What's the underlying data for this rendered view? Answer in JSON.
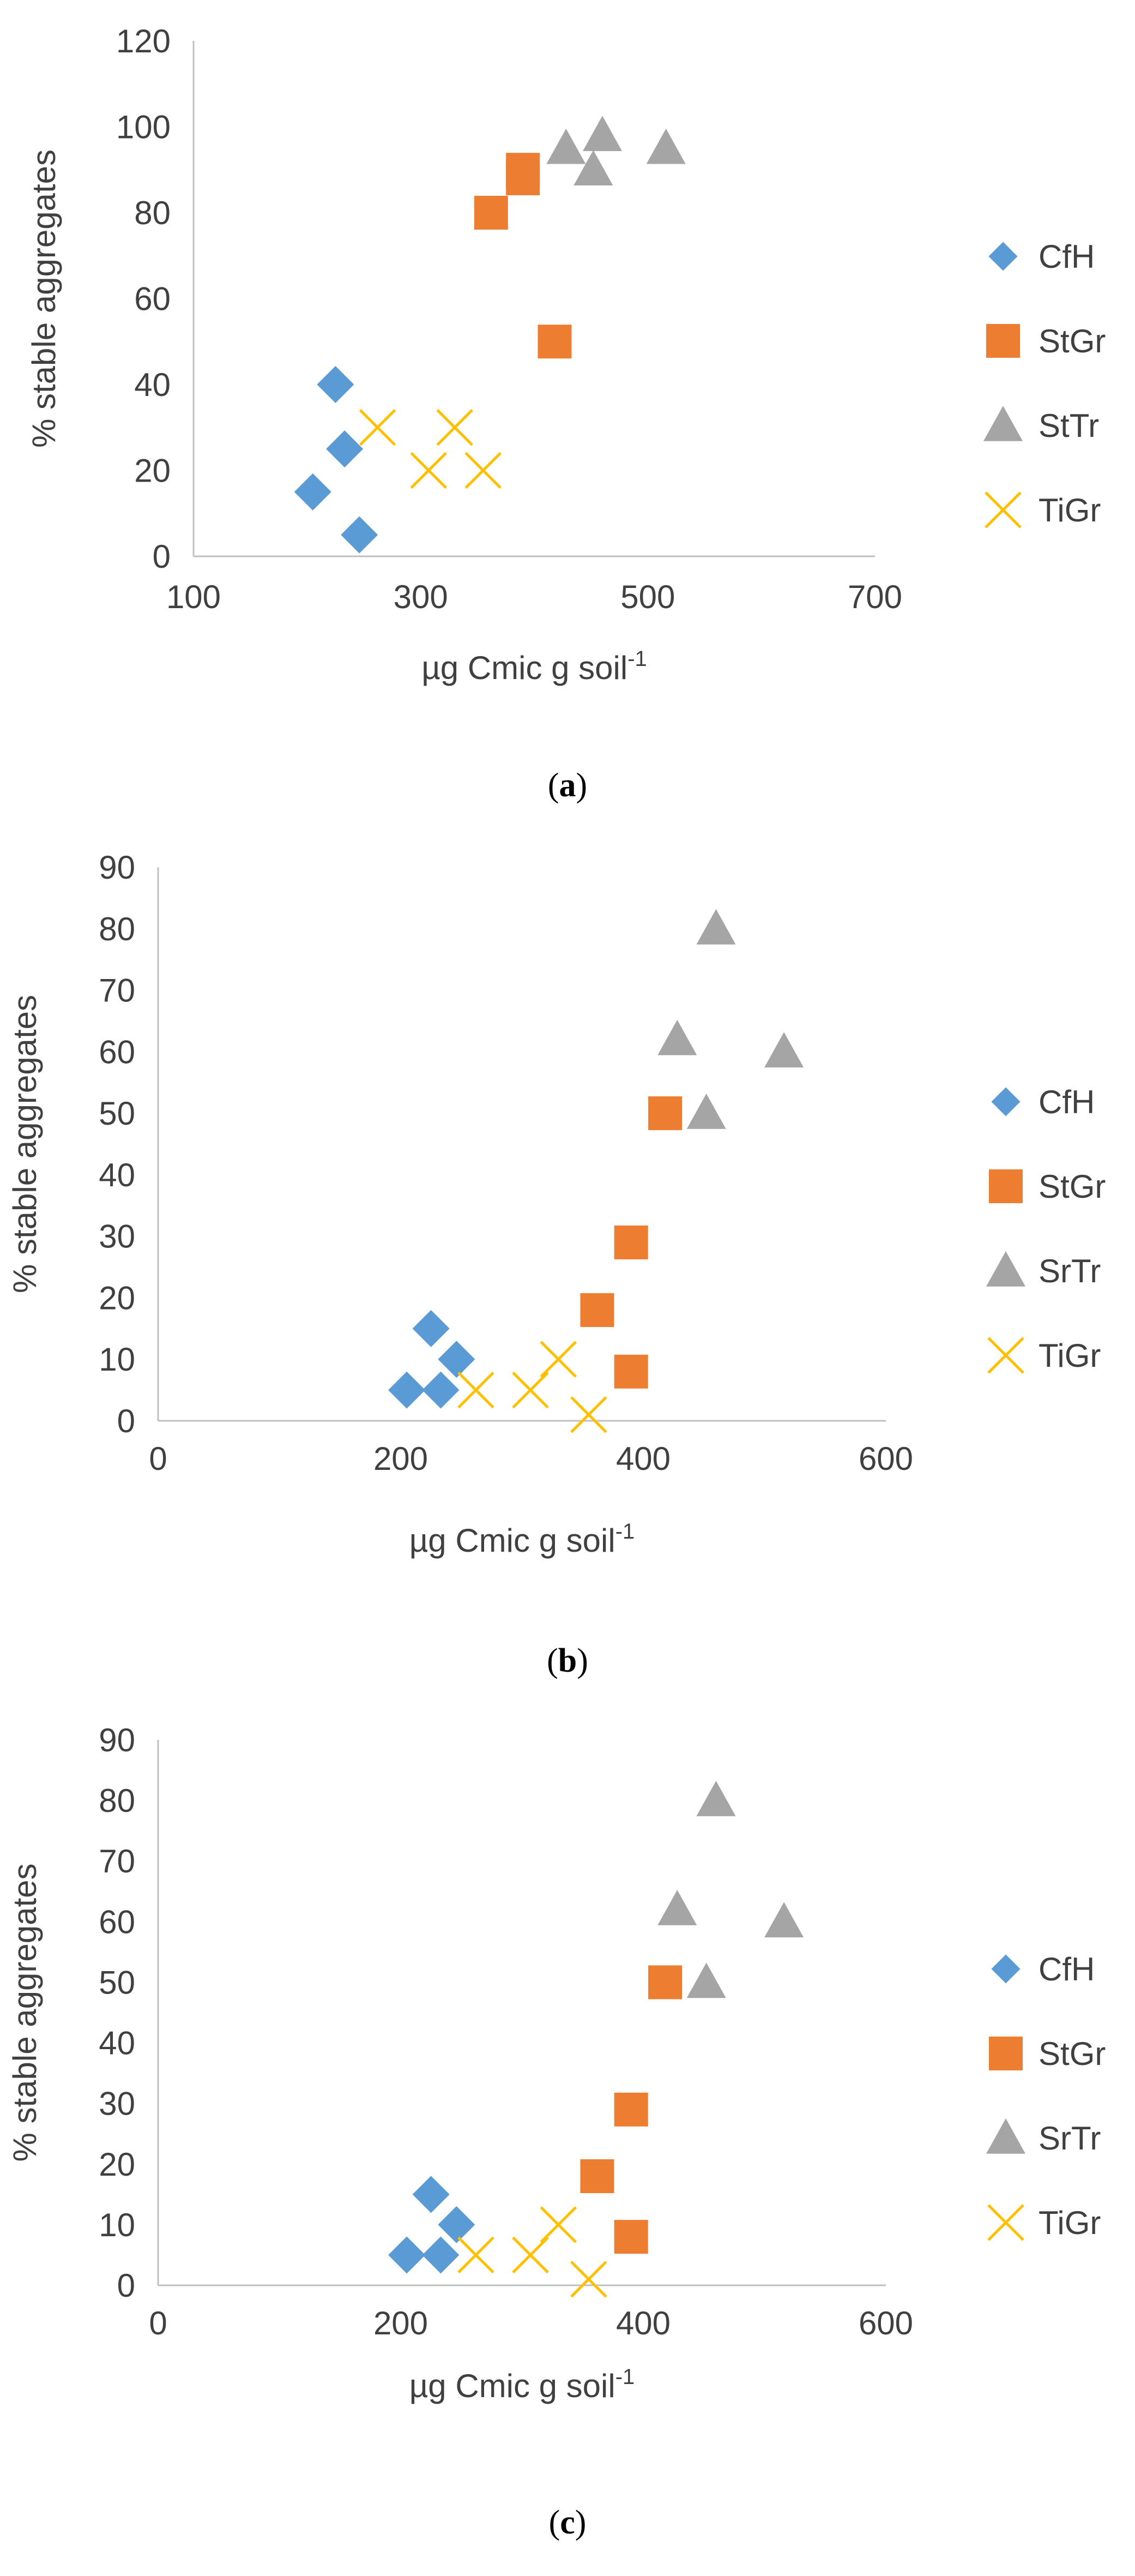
{
  "colors": {
    "CfH": "#5b9bd5",
    "StGr": "#ed7d31",
    "StTr": "#a5a5a5",
    "TiGr": "#ffc000",
    "text": "#404040",
    "axis": "#bfbfbf"
  },
  "chart_data": [
    {
      "type": "scatter",
      "panel": "a",
      "caption_open": "(",
      "caption_letter": "a",
      "caption_close": ")",
      "title": "",
      "xlabel": "µg Cmic g soil",
      "xlabel_superscript": "-1",
      "ylabel": "% stable aggregates",
      "xlim": [
        100,
        700
      ],
      "ylim": [
        0,
        120
      ],
      "xticks": [
        100,
        300,
        500,
        700
      ],
      "yticks": [
        0,
        20,
        40,
        60,
        80,
        100,
        120
      ],
      "legend_position": "right",
      "series": [
        {
          "name": "CfH",
          "marker": "diamond",
          "x": [
            225,
            233,
            205,
            246
          ],
          "y": [
            40,
            25,
            15,
            5
          ]
        },
        {
          "name": "StGr",
          "marker": "square",
          "x": [
            362,
            390,
            390,
            418
          ],
          "y": [
            80,
            88,
            90,
            50
          ]
        },
        {
          "name": "StTr",
          "marker": "triangle",
          "x": [
            428,
            460,
            452,
            516
          ],
          "y": [
            95,
            98,
            90,
            95
          ]
        },
        {
          "name": "TiGr",
          "marker": "x",
          "x": [
            262,
            330,
            307,
            355
          ],
          "y": [
            30,
            30,
            20,
            20
          ]
        }
      ]
    },
    {
      "type": "scatter",
      "panel": "b",
      "caption_open": "(",
      "caption_letter": "b",
      "caption_close": ")",
      "title": "",
      "xlabel": "µg Cmic g soil",
      "xlabel_superscript": "-1",
      "ylabel": "% stable aggregates",
      "xlim": [
        0,
        600
      ],
      "ylim": [
        0,
        90
      ],
      "xticks": [
        0,
        200,
        400,
        600
      ],
      "yticks": [
        0,
        10,
        20,
        30,
        40,
        50,
        60,
        70,
        80,
        90
      ],
      "legend_position": "right",
      "series": [
        {
          "name": "CfH",
          "marker": "diamond",
          "x": [
            205,
            225,
            233,
            246
          ],
          "y": [
            5,
            15,
            5,
            10
          ]
        },
        {
          "name": "StGr",
          "marker": "square",
          "x": [
            362,
            390,
            390,
            418
          ],
          "y": [
            18,
            29,
            8,
            50
          ]
        },
        {
          "name": "SrTr",
          "marker": "triangle",
          "x": [
            428,
            452,
            460,
            516
          ],
          "y": [
            62,
            50,
            80,
            60
          ]
        },
        {
          "name": "TiGr",
          "marker": "x",
          "x": [
            262,
            307,
            330,
            355
          ],
          "y": [
            5,
            5,
            10,
            1
          ]
        }
      ]
    },
    {
      "type": "scatter",
      "panel": "c",
      "caption_open": "(",
      "caption_letter": "c",
      "caption_close": ")",
      "title": "",
      "xlabel": "µg Cmic g soil",
      "xlabel_superscript": "-1",
      "ylabel": "% stable aggregates",
      "xlim": [
        0,
        600
      ],
      "ylim": [
        0,
        90
      ],
      "xticks": [
        0,
        200,
        400,
        600
      ],
      "yticks": [
        0,
        10,
        20,
        30,
        40,
        50,
        60,
        70,
        80,
        90
      ],
      "legend_position": "right",
      "series": [
        {
          "name": "CfH",
          "marker": "diamond",
          "x": [
            205,
            225,
            233,
            246
          ],
          "y": [
            5,
            15,
            5,
            10
          ]
        },
        {
          "name": "StGr",
          "marker": "square",
          "x": [
            362,
            390,
            390,
            418
          ],
          "y": [
            18,
            29,
            8,
            50
          ]
        },
        {
          "name": "SrTr",
          "marker": "triangle",
          "x": [
            428,
            452,
            460,
            516
          ],
          "y": [
            62,
            50,
            80,
            60
          ]
        },
        {
          "name": "TiGr",
          "marker": "x",
          "x": [
            262,
            307,
            330,
            355
          ],
          "y": [
            5,
            5,
            10,
            1
          ]
        }
      ]
    }
  ]
}
